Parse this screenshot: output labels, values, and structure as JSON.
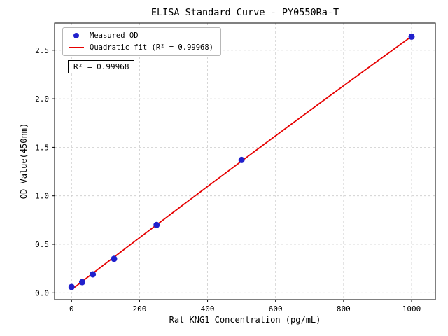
{
  "chart_data": {
    "type": "scatter",
    "title": "ELISA Standard Curve - PY0550Ra-T",
    "xlabel": "Rat KNG1 Concentration (pg/mL)",
    "ylabel": "OD Value(450nm)",
    "x": [
      0,
      31.25,
      62.5,
      125,
      250,
      500,
      1000
    ],
    "series": [
      {
        "name": "Measured OD",
        "kind": "scatter",
        "values": [
          0.06,
          0.11,
          0.19,
          0.35,
          0.7,
          1.37,
          2.64
        ],
        "color": "#2020cc"
      },
      {
        "name": "Quadratic fit (R² = 0.99968)",
        "kind": "line",
        "fit": "quadratic",
        "color": "#e60000"
      }
    ],
    "annotation": "R² = 0.99968",
    "r_squared": 0.99968,
    "xlim": [
      -50,
      1070
    ],
    "ylim": [
      -0.07,
      2.78
    ],
    "xticks": [
      0,
      200,
      400,
      600,
      800,
      1000
    ],
    "yticks": [
      0.0,
      0.5,
      1.0,
      1.5,
      2.0,
      2.5
    ],
    "grid": true,
    "grid_style": "dashed",
    "grid_color": "#cccccc",
    "legend_position": "upper-left"
  }
}
